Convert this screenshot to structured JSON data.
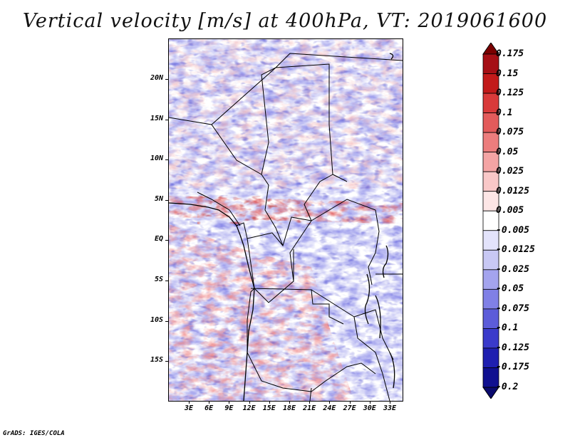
{
  "title": "Vertical velocity [m/s] at 400hPa, VT: 2019061600",
  "credit": "GrADS: IGES/COLA",
  "lat_labels": [
    "20N",
    "15N",
    "10N",
    "5N",
    "EQ",
    "5S",
    "10S",
    "15S"
  ],
  "lon_labels": [
    "3E",
    "6E",
    "9E",
    "12E",
    "15E",
    "18E",
    "21E",
    "24E",
    "27E",
    "30E",
    "33E"
  ],
  "colorbar": {
    "labels": [
      "0.175",
      "0.15",
      "0.125",
      "0.1",
      "0.075",
      "0.05",
      "0.025",
      "0.0125",
      "0.005",
      "-0.005",
      "-0.0125",
      "-0.025",
      "-0.05",
      "-0.075",
      "-0.1",
      "-0.125",
      "-0.175",
      "-0.2"
    ],
    "colors": [
      "#7a0000",
      "#a50f15",
      "#c21a1a",
      "#d93a3a",
      "#e35b5b",
      "#ec7d7d",
      "#f4a4a4",
      "#f9c8c8",
      "#fde6e6",
      "#ffffff",
      "#e3e3fb",
      "#c8c8f4",
      "#a4a4ee",
      "#8080e6",
      "#5c5cd9",
      "#3a3acb",
      "#1f1fb0",
      "#101090",
      "#0a0a6e"
    ]
  },
  "colors": {
    "positive": "#e04040",
    "negative": "#5555dd",
    "border": "#000000"
  }
}
